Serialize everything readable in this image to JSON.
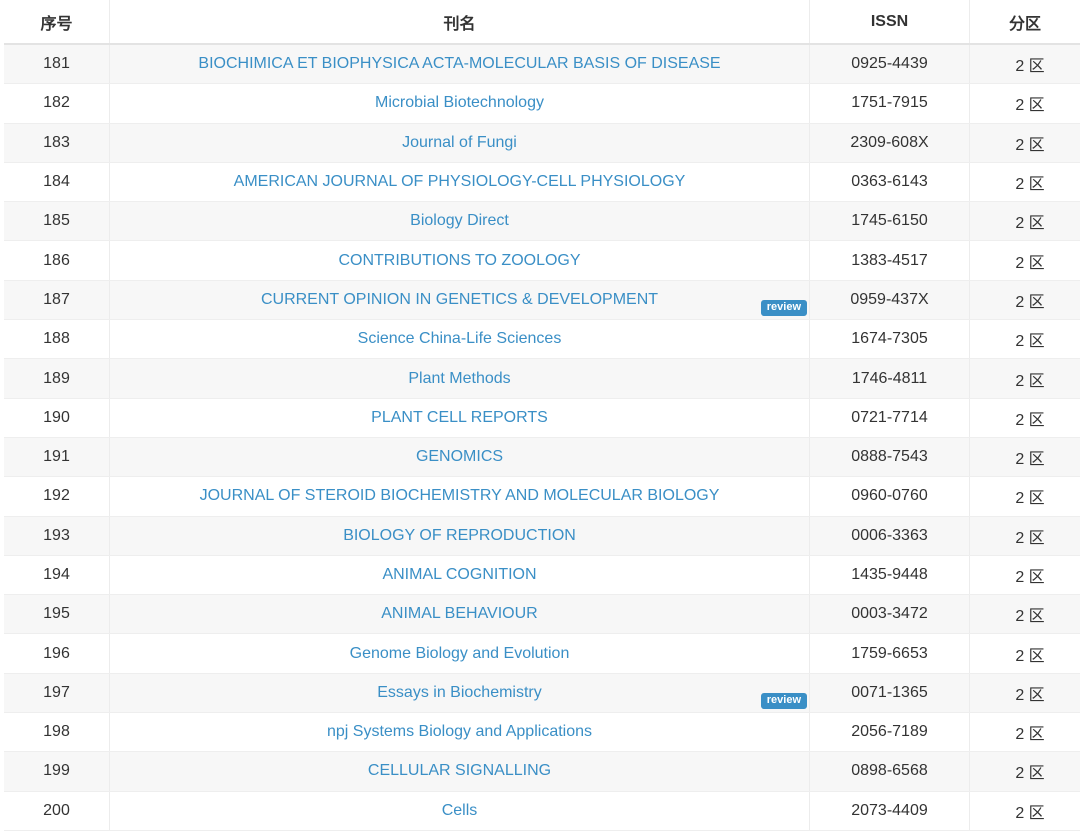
{
  "header": {
    "index": "序号",
    "journal": "刊名",
    "issn": "ISSN",
    "zone": "分区"
  },
  "colors": {
    "link": "#3a8fc6",
    "badge_bg": "#3a8fc6",
    "stripe": "#f7f7f7"
  },
  "rows": [
    {
      "index": "181",
      "journal": "BIOCHIMICA ET BIOPHYSICA ACTA-MOLECULAR BASIS OF DISEASE",
      "issn": "0925-4439",
      "zone": "2 区",
      "badge": ""
    },
    {
      "index": "182",
      "journal": "Microbial Biotechnology",
      "issn": "1751-7915",
      "zone": "2 区",
      "badge": ""
    },
    {
      "index": "183",
      "journal": "Journal of Fungi",
      "issn": "2309-608X",
      "zone": "2 区",
      "badge": ""
    },
    {
      "index": "184",
      "journal": "AMERICAN JOURNAL OF PHYSIOLOGY-CELL PHYSIOLOGY",
      "issn": "0363-6143",
      "zone": "2 区",
      "badge": ""
    },
    {
      "index": "185",
      "journal": "Biology Direct",
      "issn": "1745-6150",
      "zone": "2 区",
      "badge": ""
    },
    {
      "index": "186",
      "journal": "CONTRIBUTIONS TO ZOOLOGY",
      "issn": "1383-4517",
      "zone": "2 区",
      "badge": ""
    },
    {
      "index": "187",
      "journal": "CURRENT OPINION IN GENETICS & DEVELOPMENT",
      "issn": "0959-437X",
      "zone": "2 区",
      "badge": "review"
    },
    {
      "index": "188",
      "journal": "Science China-Life Sciences",
      "issn": "1674-7305",
      "zone": "2 区",
      "badge": ""
    },
    {
      "index": "189",
      "journal": "Plant Methods",
      "issn": "1746-4811",
      "zone": "2 区",
      "badge": ""
    },
    {
      "index": "190",
      "journal": "PLANT CELL REPORTS",
      "issn": "0721-7714",
      "zone": "2 区",
      "badge": ""
    },
    {
      "index": "191",
      "journal": "GENOMICS",
      "issn": "0888-7543",
      "zone": "2 区",
      "badge": ""
    },
    {
      "index": "192",
      "journal": "JOURNAL OF STEROID BIOCHEMISTRY AND MOLECULAR BIOLOGY",
      "issn": "0960-0760",
      "zone": "2 区",
      "badge": ""
    },
    {
      "index": "193",
      "journal": "BIOLOGY OF REPRODUCTION",
      "issn": "0006-3363",
      "zone": "2 区",
      "badge": ""
    },
    {
      "index": "194",
      "journal": "ANIMAL COGNITION",
      "issn": "1435-9448",
      "zone": "2 区",
      "badge": ""
    },
    {
      "index": "195",
      "journal": "ANIMAL BEHAVIOUR",
      "issn": "0003-3472",
      "zone": "2 区",
      "badge": ""
    },
    {
      "index": "196",
      "journal": "Genome Biology and Evolution",
      "issn": "1759-6653",
      "zone": "2 区",
      "badge": ""
    },
    {
      "index": "197",
      "journal": "Essays in Biochemistry",
      "issn": "0071-1365",
      "zone": "2 区",
      "badge": "review"
    },
    {
      "index": "198",
      "journal": "npj Systems Biology and Applications",
      "issn": "2056-7189",
      "zone": "2 区",
      "badge": ""
    },
    {
      "index": "199",
      "journal": "CELLULAR SIGNALLING",
      "issn": "0898-6568",
      "zone": "2 区",
      "badge": ""
    },
    {
      "index": "200",
      "journal": "Cells",
      "issn": "2073-4409",
      "zone": "2 区",
      "badge": ""
    }
  ]
}
